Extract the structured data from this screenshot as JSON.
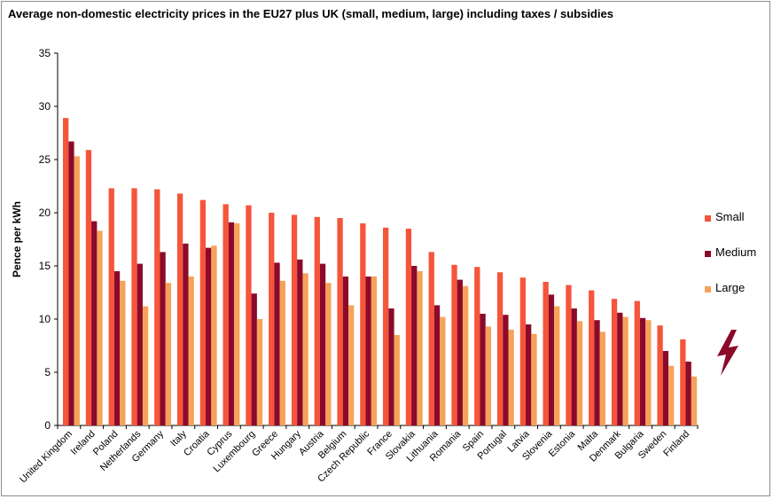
{
  "chart_data": {
    "type": "bar",
    "title": "Average non-domestic electricity prices in the EU27 plus UK (small, medium, large) including taxes / subsidies",
    "xlabel": "",
    "ylabel": "Pence per kWh",
    "ylim": [
      0,
      35
    ],
    "yticks": [
      0,
      5,
      10,
      15,
      20,
      25,
      30,
      35
    ],
    "grid": false,
    "legend_position": "right",
    "categories": [
      "United Kingdom",
      "Ireland",
      "Poland",
      "Netherlands",
      "Germany",
      "Italy",
      "Croatia",
      "Cyprus",
      "Luxembourg",
      "Greece",
      "Hungary",
      "Austria",
      "Belgium",
      "Czech Republic",
      "France",
      "Slovakia",
      "Lithuania",
      "Romania",
      "Spain",
      "Portugal",
      "Latvia",
      "Slovenia",
      "Estonia",
      "Malta",
      "Denmark",
      "Bulgaria",
      "Sweden",
      "Finland"
    ],
    "series": [
      {
        "name": "Small",
        "color": "#f5553a",
        "values": [
          28.9,
          25.9,
          22.3,
          22.3,
          22.2,
          21.8,
          21.2,
          20.8,
          20.7,
          20.0,
          19.8,
          19.6,
          19.5,
          19.0,
          18.6,
          18.5,
          16.3,
          15.1,
          14.9,
          14.4,
          13.9,
          13.5,
          13.2,
          12.7,
          11.9,
          11.7,
          9.4,
          8.1
        ]
      },
      {
        "name": "Medium",
        "color": "#8b0a2a",
        "values": [
          26.7,
          19.2,
          14.5,
          15.2,
          16.3,
          17.1,
          16.7,
          19.1,
          12.4,
          15.3,
          15.6,
          15.2,
          14.0,
          14.0,
          11.0,
          15.0,
          11.3,
          13.7,
          10.5,
          10.4,
          9.5,
          12.3,
          11.0,
          9.9,
          10.6,
          10.1,
          7.0,
          6.0
        ]
      },
      {
        "name": "Large",
        "color": "#f6a25a",
        "values": [
          25.3,
          18.3,
          13.6,
          11.2,
          13.4,
          14.0,
          16.9,
          19.0,
          10.0,
          13.6,
          14.3,
          13.4,
          11.3,
          14.0,
          8.5,
          14.5,
          10.2,
          13.1,
          9.3,
          9.0,
          8.6,
          11.2,
          9.8,
          8.8,
          10.2,
          9.9,
          5.6,
          4.6
        ]
      }
    ]
  },
  "decoration": {
    "bolt_icon_color": "#8b0a2a"
  }
}
